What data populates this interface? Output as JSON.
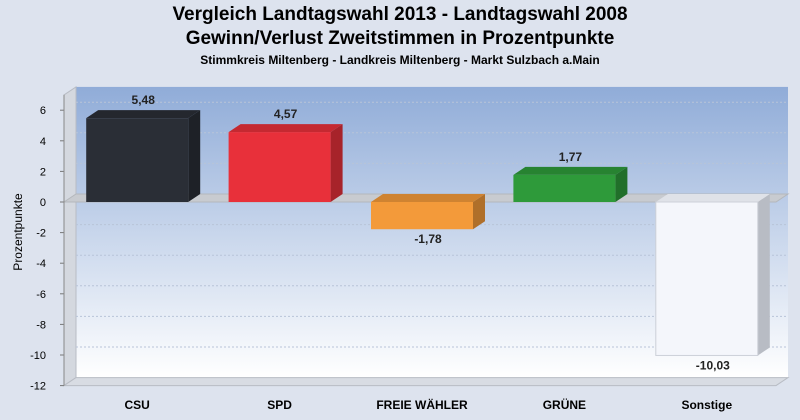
{
  "titles": {
    "line1": "Vergleich Landtagswahl 2013 - Landtagswahl 2008",
    "line2": "Gewinn/Verlust Zweitstimmen in Prozentpunkte",
    "subtitle": "Stimmkreis Miltenberg - Landkreis Miltenberg - Markt Sulzbach a.Main"
  },
  "chart_data": {
    "type": "bar",
    "title": "Vergleich Landtagswahl 2013 - Landtagswahl 2008",
    "subtitle": "Gewinn/Verlust Zweitstimmen in Prozentpunkte",
    "ylabel": "Prozentpunkte",
    "ylim": [
      -12,
      7
    ],
    "yticks": [
      6,
      4,
      2,
      0,
      -2,
      -4,
      -6,
      -8,
      -10,
      -12
    ],
    "grid": true,
    "legend": "none",
    "categories": [
      "CSU",
      "SPD",
      "FREIE WÄHLER",
      "GRÜNE",
      "Sonstige"
    ],
    "values": [
      5.48,
      4.57,
      -1.78,
      1.77,
      -10.03
    ],
    "labels": [
      "5,48",
      "4,57",
      "-1,78",
      "1,77",
      "-10,03"
    ],
    "colors": [
      "#2a2e36",
      "#e8303a",
      "#f39a3a",
      "#2e9a3a",
      "#f4f6fb"
    ]
  }
}
